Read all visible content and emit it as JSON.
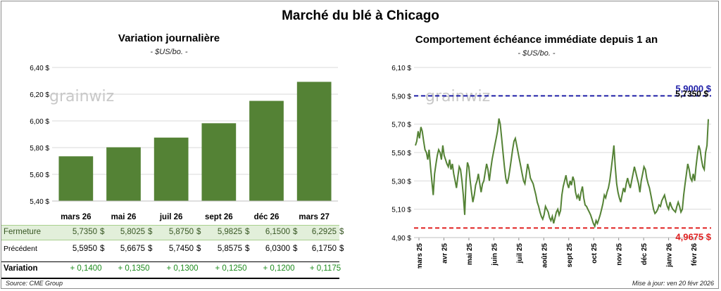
{
  "title": "Marché du blé à Chicago",
  "left": {
    "title": "Variation journalière",
    "subtitle": "- $US/bo. -"
  },
  "right": {
    "title": "Comportement échéance immédiate depuis 1 an",
    "subtitle": "- $US/bo. -"
  },
  "watermark": "grainwiz",
  "footer": {
    "source": "Source: CME Group",
    "updated": "Mise à jour: ven 20 févr 2026"
  },
  "table": {
    "currency": "$",
    "rows": [
      {
        "label": "Fermeture",
        "values": [
          "5,7350",
          "5,8025",
          "5,8750",
          "5,9825",
          "6,1500",
          "6,2925"
        ]
      },
      {
        "label": "Précédent",
        "values": [
          "5,5950",
          "5,6675",
          "5,7450",
          "5,8575",
          "6,0300",
          "6,1750"
        ]
      },
      {
        "label": "Variation",
        "values": [
          "+ 0,1400",
          "+ 0,1350",
          "+ 0,1300",
          "+ 0,1250",
          "+ 0,1200",
          "+ 0,1175"
        ]
      }
    ]
  },
  "chart_data": [
    {
      "type": "bar",
      "title": "Variation journalière",
      "subtitle": "- $US/bo. -",
      "categories": [
        "mars 26",
        "mai 26",
        "juil 26",
        "sept 26",
        "déc 26",
        "mars 27"
      ],
      "values": [
        5.735,
        5.8025,
        5.875,
        5.9825,
        6.15,
        6.2925
      ],
      "ylim": [
        5.4,
        6.4
      ],
      "yticks": [
        "5,40 $",
        "5,60 $",
        "5,80 $",
        "6,00 $",
        "6,20 $",
        "6,40 $"
      ],
      "bar_color": "#548235",
      "grid": "horizontal"
    },
    {
      "type": "line",
      "title": "Comportement échéance immédiate depuis 1 an",
      "subtitle": "- $US/bo. -",
      "ylim": [
        4.9,
        6.1
      ],
      "yticks": [
        "4,90 $",
        "5,10 $",
        "5,30 $",
        "5,50 $",
        "5,70 $",
        "5,90 $",
        "6,10 $"
      ],
      "xticks": [
        "mars 25",
        "avr 25",
        "mai 25",
        "juin 25",
        "juil 25",
        "août 25",
        "sept 25",
        "oct 25",
        "nov 25",
        "déc 25",
        "janv 26",
        "févr 26"
      ],
      "line_color": "#548235",
      "max_line": {
        "value": 5.9,
        "label": "5,9000 $",
        "color": "#1f1fa8"
      },
      "min_line": {
        "value": 4.9675,
        "label": "4,9675 $",
        "color": "#e02020"
      },
      "last_label": "5,7350 $",
      "series": [
        {
          "values": [
            5.55,
            5.58,
            5.65,
            5.6,
            5.68,
            5.65,
            5.58,
            5.52,
            5.5,
            5.45,
            5.52,
            5.4,
            5.3,
            5.2,
            5.35,
            5.42,
            5.48,
            5.52,
            5.5,
            5.45,
            5.55,
            5.48,
            5.45,
            5.42,
            5.4,
            5.45,
            5.38,
            5.42,
            5.35,
            5.3,
            5.25,
            5.33,
            5.4,
            5.38,
            5.3,
            5.2,
            5.06,
            5.3,
            5.43,
            5.4,
            5.3,
            5.22,
            5.15,
            5.2,
            5.27,
            5.3,
            5.35,
            5.28,
            5.22,
            5.28,
            5.3,
            5.36,
            5.42,
            5.38,
            5.3,
            5.38,
            5.45,
            5.5,
            5.55,
            5.6,
            5.65,
            5.74,
            5.7,
            5.6,
            5.5,
            5.4,
            5.32,
            5.28,
            5.32,
            5.38,
            5.45,
            5.52,
            5.58,
            5.6,
            5.55,
            5.5,
            5.45,
            5.4,
            5.35,
            5.3,
            5.28,
            5.35,
            5.42,
            5.38,
            5.32,
            5.3,
            5.28,
            5.24,
            5.2,
            5.15,
            5.12,
            5.08,
            5.05,
            5.03,
            5.06,
            5.12,
            5.1,
            5.08,
            5.04,
            5.02,
            5.05,
            5.0,
            5.04,
            5.08,
            5.1,
            5.06,
            5.09,
            5.2,
            5.26,
            5.3,
            5.34,
            5.28,
            5.25,
            5.3,
            5.27,
            5.33,
            5.3,
            5.22,
            5.18,
            5.2,
            5.16,
            5.22,
            5.26,
            5.18,
            5.13,
            5.12,
            5.1,
            5.08,
            5.06,
            5.03,
            5.0,
            4.98,
            5.02,
            5.0,
            5.03,
            5.06,
            5.1,
            5.14,
            5.2,
            5.18,
            5.22,
            5.25,
            5.3,
            5.38,
            5.46,
            5.55,
            5.4,
            5.28,
            5.22,
            5.18,
            5.15,
            5.2,
            5.25,
            5.22,
            5.28,
            5.32,
            5.28,
            5.25,
            5.3,
            5.35,
            5.4,
            5.36,
            5.32,
            5.28,
            5.22,
            5.3,
            5.35,
            5.4,
            5.38,
            5.32,
            5.28,
            5.25,
            5.2,
            5.15,
            5.1,
            5.07,
            5.08,
            5.1,
            5.13,
            5.12,
            5.16,
            5.18,
            5.2,
            5.16,
            5.12,
            5.1,
            5.15,
            5.12,
            5.1,
            5.09,
            5.08,
            5.12,
            5.15,
            5.12,
            5.08,
            5.1,
            5.2,
            5.28,
            5.35,
            5.42,
            5.38,
            5.32,
            5.3,
            5.35,
            5.3,
            5.4,
            5.48,
            5.55,
            5.52,
            5.45,
            5.4,
            5.38,
            5.5,
            5.55,
            5.735
          ]
        }
      ]
    }
  ]
}
